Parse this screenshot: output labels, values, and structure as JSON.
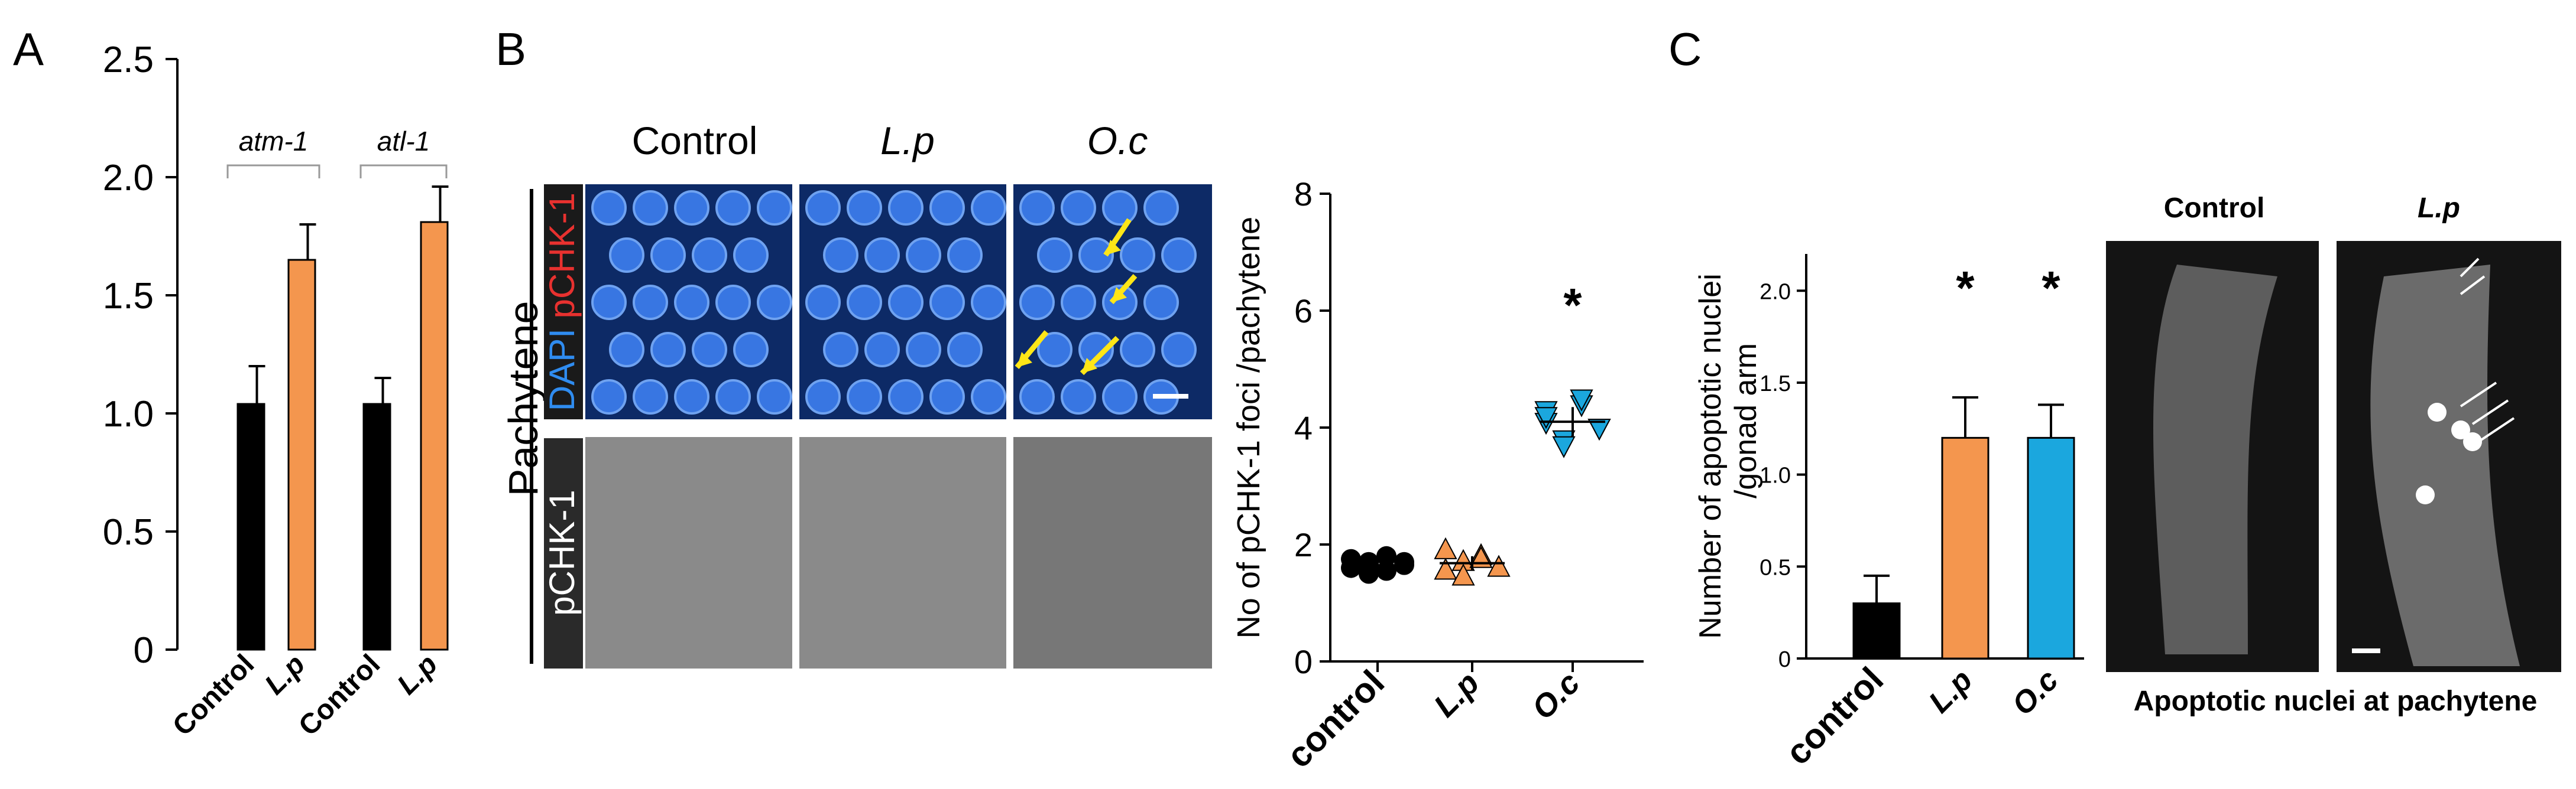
{
  "panels": {
    "A": {
      "letter": "A"
    },
    "B": {
      "letter": "B",
      "col_headers": [
        "Control",
        "L.p",
        "O.c"
      ],
      "row_label_outer": "Pachytene",
      "row_label_top_dapi": "DAPI",
      "row_label_top_pchk": "pCHK-1",
      "row_label_bottom": "pCHK-1"
    },
    "C": {
      "letter": "C",
      "image_headers": [
        "Control",
        "L.p"
      ],
      "image_caption": "Apoptotic nuclei at pachytene"
    }
  },
  "colors": {
    "black_bar": "#000000",
    "orange": "#F4964E",
    "blue": "#1BA7DE",
    "yellow_arrow": "#FFE617",
    "dapi_blue": "#2F6FD8",
    "pchk_red": "#E8312F"
  },
  "chart_data": [
    {
      "id": "A",
      "type": "bar",
      "categories": [
        "Control",
        "L.p",
        "Control",
        "L.p"
      ],
      "groups": [
        {
          "label": "atm-1",
          "indices": [
            0,
            1
          ]
        },
        {
          "label": "atl-1",
          "indices": [
            2,
            3
          ]
        }
      ],
      "values": [
        1.04,
        1.65,
        1.04,
        1.81
      ],
      "errors": [
        0.16,
        0.15,
        0.11,
        0.15
      ],
      "bar_colors": [
        "#000000",
        "#F4964E",
        "#000000",
        "#F4964E"
      ],
      "ylim": [
        0,
        2.5
      ],
      "yticks": [
        "0",
        "0.5",
        "1.0",
        "1.5",
        "2.0",
        "2.5"
      ],
      "xlabel": "",
      "ylabel": ""
    },
    {
      "id": "B",
      "type": "scatter",
      "categories": [
        "control",
        "L.p",
        "O.c"
      ],
      "points": [
        [
          1.6,
          1.7,
          1.55,
          1.65,
          1.75,
          1.5,
          1.8,
          1.7
        ],
        [
          1.55,
          1.7,
          1.8,
          1.6,
          1.9,
          1.45,
          1.75
        ],
        [
          4.1,
          3.8,
          4.4,
          4.0,
          4.3,
          3.7,
          4.5,
          4.0,
          4.2
        ]
      ],
      "means": [
        1.62,
        1.68,
        4.1
      ],
      "sem": [
        0.1,
        0.12,
        0.25
      ],
      "markers": [
        "circle",
        "triangle-up",
        "triangle-down"
      ],
      "marker_colors": [
        "#000000",
        "#F4964E",
        "#1BA7DE"
      ],
      "significance": [
        "",
        "",
        "*"
      ],
      "ylim": [
        0,
        8
      ],
      "yticks": [
        "0",
        "2",
        "4",
        "6",
        "8"
      ],
      "ylabel": "No of pCHK-1 foci /pachytene"
    },
    {
      "id": "C",
      "type": "bar",
      "categories": [
        "control",
        "L.p",
        "O.c"
      ],
      "values": [
        0.3,
        1.2,
        1.2
      ],
      "errors": [
        0.15,
        0.22,
        0.18
      ],
      "bar_colors": [
        "#000000",
        "#F4964E",
        "#1BA7DE"
      ],
      "significance": [
        "",
        "*",
        "*"
      ],
      "ylim": [
        0,
        2.2
      ],
      "yticks": [
        "0",
        "0.5",
        "1.0",
        "1.5",
        "2.0"
      ],
      "ylabel": "Number of apoptotic nuclei /gonad arm"
    }
  ]
}
